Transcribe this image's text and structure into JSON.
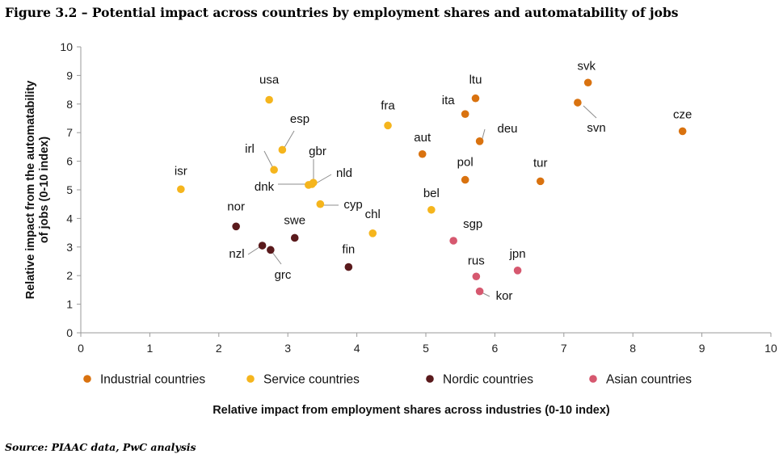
{
  "figure": {
    "title": "Figure 3.2 – Potential impact across countries by employment shares and automatability of jobs",
    "source": "Source: PIAAC data, PwC analysis"
  },
  "chart_data": {
    "type": "scatter",
    "xlabel": "Relative impact from employment shares across industries (0-10 index)",
    "ylabel_lines": [
      "Relative impact from the automatability",
      "of jobs (0-10 index)"
    ],
    "xlim": [
      0,
      10
    ],
    "ylim": [
      0,
      10
    ],
    "xticks": [
      "0",
      "1",
      "2",
      "3",
      "4",
      "5",
      "6",
      "7",
      "8",
      "9",
      "10"
    ],
    "yticks": [
      "0",
      "1",
      "2",
      "3",
      "4",
      "5",
      "6",
      "7",
      "8",
      "9",
      "10"
    ],
    "grid": false,
    "legend_position": "bottom",
    "series": [
      {
        "name": "Industrial countries",
        "color": "#D9720F",
        "points": [
          {
            "label": "svk",
            "x": 7.35,
            "y": 8.75
          },
          {
            "label": "svn",
            "x": 7.2,
            "y": 8.05
          },
          {
            "label": "ltu",
            "x": 5.72,
            "y": 8.2
          },
          {
            "label": "ita",
            "x": 5.57,
            "y": 7.65
          },
          {
            "label": "deu",
            "x": 5.78,
            "y": 6.7
          },
          {
            "label": "cze",
            "x": 8.72,
            "y": 7.05
          },
          {
            "label": "aut",
            "x": 4.95,
            "y": 6.25
          },
          {
            "label": "pol",
            "x": 5.57,
            "y": 5.35
          },
          {
            "label": "tur",
            "x": 6.66,
            "y": 5.3
          }
        ]
      },
      {
        "name": "Service countries",
        "color": "#F5B51D",
        "points": [
          {
            "label": "usa",
            "x": 2.73,
            "y": 8.15
          },
          {
            "label": "fra",
            "x": 4.45,
            "y": 7.25
          },
          {
            "label": "esp",
            "x": 2.92,
            "y": 6.4
          },
          {
            "label": "irl",
            "x": 2.8,
            "y": 5.7
          },
          {
            "label": "gbr",
            "x": 3.37,
            "y": 5.25
          },
          {
            "label": "nld",
            "x": 3.35,
            "y": 5.2
          },
          {
            "label": "dnk",
            "x": 3.3,
            "y": 5.17
          },
          {
            "label": "isr",
            "x": 1.45,
            "y": 5.02
          },
          {
            "label": "cyp",
            "x": 3.47,
            "y": 4.5
          },
          {
            "label": "bel",
            "x": 5.08,
            "y": 4.3
          },
          {
            "label": "chl",
            "x": 4.23,
            "y": 3.48
          }
        ]
      },
      {
        "name": "Nordic countries",
        "color": "#5A1A1C",
        "points": [
          {
            "label": "nor",
            "x": 2.25,
            "y": 3.72
          },
          {
            "label": "swe",
            "x": 3.1,
            "y": 3.32
          },
          {
            "label": "nzl",
            "x": 2.63,
            "y": 3.05
          },
          {
            "label": "grc",
            "x": 2.75,
            "y": 2.9
          },
          {
            "label": "fin",
            "x": 3.88,
            "y": 2.3
          }
        ]
      },
      {
        "name": "Asian countries",
        "color": "#D6586F",
        "points": [
          {
            "label": "sgp",
            "x": 5.4,
            "y": 3.22
          },
          {
            "label": "jpn",
            "x": 6.33,
            "y": 2.18
          },
          {
            "label": "rus",
            "x": 5.73,
            "y": 1.97
          },
          {
            "label": "kor",
            "x": 5.78,
            "y": 1.45
          }
        ]
      }
    ]
  }
}
